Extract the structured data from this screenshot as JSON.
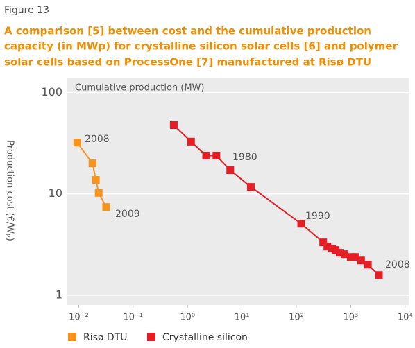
{
  "chart_data": {
    "type": "line",
    "figure_label": "Figure 13",
    "title": "A comparison [5] between cost and the cumulative production capacity (in MWp) for crystalline silicon solar cells [6] and polymer solar cells based on ProcessOne [7] manufactured at Risø DTU",
    "title_lines": [
      "A comparison [5] between cost and the cumulative production",
      "capacity (in MWp) for crystalline silicon solar cells [6] and polymer",
      "solar cells based on ProcessOne [7] manufactured at Risø DTU"
    ],
    "x_label": "Cumulative production (MW)",
    "y_label": "Production cost (€/Wₚ)",
    "x_log": true,
    "y_log": true,
    "xlim": [
      0.006,
      12000
    ],
    "ylim": [
      0.8,
      140
    ],
    "xticks": [
      {
        "value": 0.01,
        "label": "10⁻²"
      },
      {
        "value": 0.1,
        "label": "10⁻¹"
      },
      {
        "value": 1,
        "label": "10⁰"
      },
      {
        "value": 10,
        "label": "10¹"
      },
      {
        "value": 100,
        "label": "10²"
      },
      {
        "value": 1000,
        "label": "10³"
      },
      {
        "value": 10000,
        "label": "10⁴"
      }
    ],
    "yticks": [
      1,
      10,
      100
    ],
    "grid": true,
    "legend": "bottom",
    "series": [
      {
        "name": "Risø DTU",
        "color": "#f7941d",
        "x": [
          0.0094,
          0.0179,
          0.0207,
          0.0233,
          0.032
        ],
        "values": [
          32,
          20,
          13.7,
          10.2,
          7.4
        ]
      },
      {
        "name": "Crystalline silicon",
        "color": "#e31e24",
        "x": [
          0.56,
          1.16,
          2.2,
          3.4,
          6.1,
          14.6,
          123,
          312,
          372,
          455,
          527,
          627,
          769,
          1000,
          1227,
          1549,
          2070,
          3300
        ],
        "values": [
          47.6,
          32.7,
          23.8,
          23.8,
          17.1,
          11.7,
          5.07,
          3.32,
          3.02,
          2.88,
          2.79,
          2.62,
          2.54,
          2.38,
          2.38,
          2.2,
          2.0,
          1.58
        ]
      }
    ],
    "annotations": [
      {
        "text": "2008"
      },
      {
        "text": "2009"
      },
      {
        "text": "1980"
      },
      {
        "text": "1990"
      },
      {
        "text": "2008"
      }
    ]
  }
}
